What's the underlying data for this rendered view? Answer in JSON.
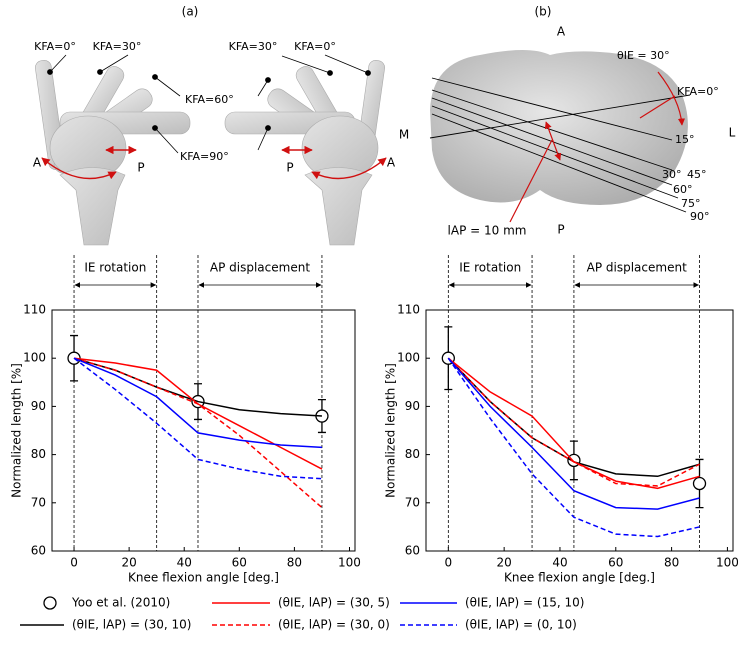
{
  "panel_a": {
    "label": "(a)",
    "texts": [
      "KFA=0°",
      "KFA=30°",
      "KFA=60°",
      "KFA=90°",
      "KFA=30°",
      "KFA=0°",
      "A",
      "P",
      "P",
      "A"
    ]
  },
  "panel_b": {
    "label": "(b)",
    "texts": [
      "A",
      "P",
      "M",
      "L",
      "θIE = 30°",
      "KFA=0°",
      "15°",
      "30°",
      "45°",
      "60°",
      "75°",
      "90°",
      "lAP = 10 mm"
    ]
  },
  "chart_data": [
    {
      "type": "line",
      "xlabel": "Knee flexion angle [deg.]",
      "ylabel": "Normalized length [%]",
      "xlim": [
        -8,
        102
      ],
      "xticks": [
        0,
        20,
        40,
        60,
        80,
        100
      ],
      "ylim": [
        60,
        110
      ],
      "yticks": [
        60,
        70,
        80,
        90,
        100,
        110
      ],
      "annotations": [
        {
          "text": "IE rotation",
          "x": [
            0,
            30
          ]
        },
        {
          "text": "AP displacement",
          "x": [
            45,
            90
          ]
        }
      ],
      "x": [
        0,
        15,
        30,
        45,
        60,
        75,
        90
      ],
      "series": [
        {
          "name": "Yoo et al. (2010)",
          "marker": "circle",
          "color": "#000000",
          "x": [
            0,
            45,
            90
          ],
          "values": [
            100,
            91,
            88
          ],
          "errors": [
            4.7,
            3.7,
            3.4
          ]
        },
        {
          "name": "(θIE, lAP) = (30, 10)",
          "color": "#000000",
          "dash": false,
          "values": [
            100,
            97.5,
            94,
            91,
            89.3,
            88.5,
            88
          ]
        },
        {
          "name": "(θIE, lAP) = (30, 5)",
          "color": "#ff0000",
          "dash": false,
          "values": [
            100,
            99,
            97.5,
            90.5,
            86,
            81.5,
            77
          ]
        },
        {
          "name": "(θIE, lAP) = (30, 0)",
          "color": "#ff0000",
          "dash": true,
          "values": [
            100,
            97.5,
            94,
            90.5,
            84,
            76.5,
            69
          ]
        },
        {
          "name": "(θIE, lAP) = (15, 10)",
          "color": "#0000ff",
          "dash": false,
          "values": [
            100,
            96.5,
            92,
            84.5,
            83,
            82,
            81.5
          ]
        },
        {
          "name": "(θIE, lAP) = (0, 10)",
          "color": "#0000ff",
          "dash": true,
          "values": [
            100,
            93.5,
            86.5,
            79,
            77,
            75.5,
            75
          ]
        }
      ]
    },
    {
      "type": "line",
      "xlabel": "Knee flexion angle [deg.]",
      "ylabel": "Normalized length [%]",
      "xlim": [
        -8,
        102
      ],
      "xticks": [
        0,
        20,
        40,
        60,
        80,
        100
      ],
      "ylim": [
        60,
        110
      ],
      "yticks": [
        60,
        70,
        80,
        90,
        100,
        110
      ],
      "annotations": [
        {
          "text": "IE rotation",
          "x": [
            0,
            30
          ]
        },
        {
          "text": "AP displacement",
          "x": [
            45,
            90
          ]
        }
      ],
      "x": [
        0,
        15,
        30,
        45,
        60,
        75,
        90
      ],
      "series": [
        {
          "marker": "circle",
          "color": "#000000",
          "x": [
            0,
            45,
            90
          ],
          "values": [
            100,
            78.8,
            74
          ],
          "errors": [
            6.5,
            4,
            5
          ]
        },
        {
          "color": "#000000",
          "dash": false,
          "values": [
            100,
            91,
            83.5,
            78.5,
            76,
            75.5,
            78
          ]
        },
        {
          "color": "#ff0000",
          "dash": false,
          "values": [
            100,
            93,
            88,
            78.5,
            74.5,
            73,
            75.5
          ]
        },
        {
          "color": "#ff0000",
          "dash": true,
          "values": [
            100,
            91,
            83.5,
            78.5,
            74,
            73.5,
            78
          ]
        },
        {
          "color": "#0000ff",
          "dash": false,
          "values": [
            100,
            90,
            81.5,
            72.5,
            69,
            68.7,
            71
          ]
        },
        {
          "color": "#0000ff",
          "dash": true,
          "values": [
            100,
            87.5,
            76,
            67,
            63.5,
            63,
            65
          ]
        }
      ]
    }
  ]
}
